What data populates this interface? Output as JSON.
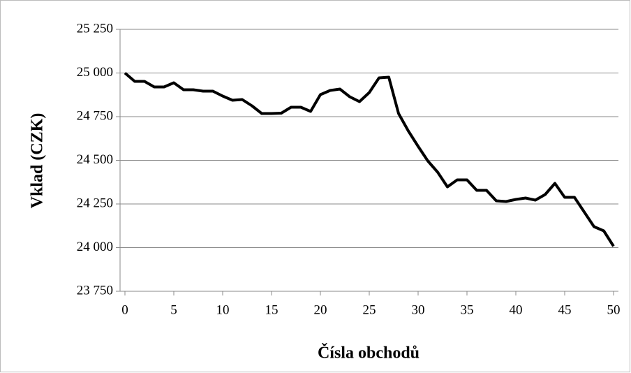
{
  "chart_data": {
    "type": "line",
    "x_label": "Čísla obchodů",
    "y_label": "Vklad (CZK)",
    "x": [
      0,
      1,
      2,
      3,
      4,
      5,
      6,
      7,
      8,
      9,
      10,
      11,
      12,
      13,
      14,
      15,
      16,
      17,
      18,
      19,
      20,
      21,
      22,
      23,
      24,
      25,
      26,
      27,
      28,
      29,
      30,
      31,
      32,
      33,
      34,
      35,
      36,
      37,
      38,
      39,
      40,
      41,
      42,
      43,
      44,
      45,
      46,
      47,
      48,
      49,
      50
    ],
    "series": [
      {
        "name": "Vklad",
        "color": "#000000",
        "values": [
          25000,
          24952,
          24952,
          24920,
          24920,
          24944,
          24904,
          24904,
          24896,
          24896,
          24868,
          24844,
          24848,
          24812,
          24768,
          24768,
          24770,
          24804,
          24804,
          24780,
          24876,
          24900,
          24908,
          24864,
          24836,
          24888,
          24972,
          24976,
          24768,
          24668,
          24580,
          24496,
          24432,
          24348,
          24388,
          24388,
          24328,
          24328,
          24268,
          24264,
          24276,
          24284,
          24272,
          24304,
          24368,
          24288,
          24288,
          24204,
          24120,
          24096,
          24008
        ]
      }
    ],
    "xlim": [
      -0.5,
      50.5
    ],
    "xticks": [
      0,
      5,
      10,
      15,
      20,
      25,
      30,
      35,
      40,
      45,
      50
    ],
    "ylim": [
      23750,
      25250
    ],
    "yticks": [
      {
        "value": 23750,
        "label": "23 750"
      },
      {
        "value": 24000,
        "label": "24 000"
      },
      {
        "value": 24250,
        "label": "24 250"
      },
      {
        "value": 24500,
        "label": "24 500"
      },
      {
        "value": 24750,
        "label": "24 750"
      },
      {
        "value": 25000,
        "label": "25 000"
      },
      {
        "value": 25250,
        "label": "25 250"
      }
    ],
    "grid": true
  }
}
